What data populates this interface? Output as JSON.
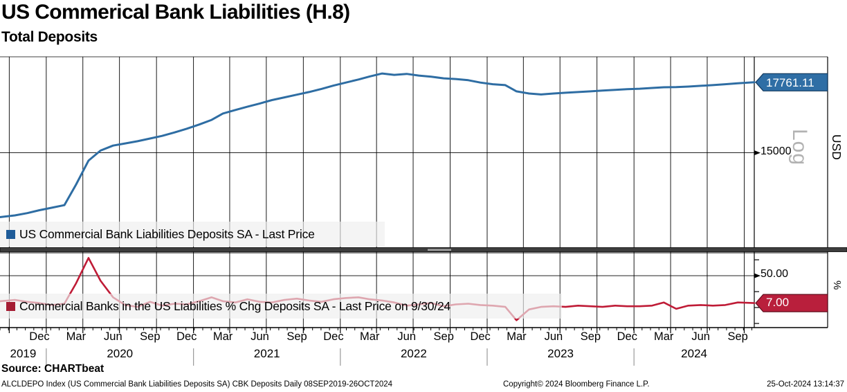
{
  "header": {
    "title": "US Commerical Bank Liabilities (H.8)",
    "subtitle": "Total Deposits"
  },
  "panels": {
    "top": {
      "legend_label": "US Commercial Bank Liabilities Deposits SA - Last Price",
      "axis_tick_label": "15000",
      "last_price_tag": "17761.11",
      "unit_label": "USD",
      "scale_label": "Log"
    },
    "bottom": {
      "legend_label": "Commercial Banks in the US Liabilities % Chg Deposits SA - Last Price on 9/30/24",
      "axis_tick_label": "50.00",
      "last_price_tag": "7.00",
      "unit_label": "%"
    }
  },
  "footer": {
    "source": "Source: CHARTbeat",
    "description": "ALCLDEPO Index (US Commercial Bank Liabilities Deposits SA) CBK Deposits  Daily 08SEP2019-26OCT2024",
    "copyright": "Copyright© 2024 Bloomberg Finance L.P.",
    "datetime": "25-Oct-2024 13:14:37"
  },
  "colors": {
    "blue_line": "#2e6da3",
    "blue_tag_fill": "#2f6ea5",
    "blue_tag_border": "#11375c",
    "blue_swatch": "#1f5c99",
    "red_line": "#bf1b36",
    "red_tag_fill": "#b91f3c",
    "red_tag_border": "#5f0d1d",
    "red_swatch": "#a51c33",
    "gridline": "#000000",
    "divider": "#3d3d3d",
    "year_separator": "#999999",
    "log_watermark": "#b2b2b2"
  },
  "x_axis": {
    "start_date": "2019-09-08",
    "end_date": "2024-10-26",
    "months": [
      {
        "label": "Dec",
        "date": "2019-12-15"
      },
      {
        "label": "Mar",
        "date": "2020-03-15"
      },
      {
        "label": "Jun",
        "date": "2020-06-15"
      },
      {
        "label": "Sep",
        "date": "2020-09-15"
      },
      {
        "label": "Dec",
        "date": "2020-12-15"
      },
      {
        "label": "Mar",
        "date": "2021-03-15"
      },
      {
        "label": "Jun",
        "date": "2021-06-15"
      },
      {
        "label": "Sep",
        "date": "2021-09-15"
      },
      {
        "label": "Dec",
        "date": "2021-12-15"
      },
      {
        "label": "Mar",
        "date": "2022-03-15"
      },
      {
        "label": "Jun",
        "date": "2022-06-15"
      },
      {
        "label": "Sep",
        "date": "2022-09-15"
      },
      {
        "label": "Dec",
        "date": "2022-12-15"
      },
      {
        "label": "Mar",
        "date": "2023-03-15"
      },
      {
        "label": "Jun",
        "date": "2023-06-15"
      },
      {
        "label": "Sep",
        "date": "2023-09-15"
      },
      {
        "label": "Dec",
        "date": "2023-12-15"
      },
      {
        "label": "Mar",
        "date": "2024-03-15"
      },
      {
        "label": "Jun",
        "date": "2024-06-15"
      },
      {
        "label": "Sep",
        "date": "2024-09-15"
      }
    ],
    "years": [
      {
        "label": "2019",
        "start": "2019-09-08",
        "end": "2020-01-01"
      },
      {
        "label": "2020",
        "start": "2020-01-01",
        "end": "2021-01-01"
      },
      {
        "label": "2021",
        "start": "2021-01-01",
        "end": "2022-01-01"
      },
      {
        "label": "2022",
        "start": "2022-01-01",
        "end": "2023-01-01"
      },
      {
        "label": "2023",
        "start": "2023-01-01",
        "end": "2024-01-01"
      },
      {
        "label": "2024",
        "start": "2024-01-01",
        "end": "2024-10-26"
      }
    ]
  },
  "chart_data": [
    {
      "type": "line",
      "name": "US Commercial Bank Liabilities Deposits SA - Last Price",
      "unit": "USD (billions)",
      "yscale": "log",
      "ylim": [
        11960,
        18880
      ],
      "gridline_values": [
        15000
      ],
      "legend_position": "bottom-left-band",
      "grid": "quarterly-vertical",
      "last_price": 17761.11,
      "x": [
        "2019-09-08",
        "2019-10-15",
        "2019-11-15",
        "2019-12-15",
        "2020-01-15",
        "2020-02-15",
        "2020-03-15",
        "2020-04-15",
        "2020-05-15",
        "2020-06-15",
        "2020-07-15",
        "2020-08-15",
        "2020-09-15",
        "2020-10-15",
        "2020-11-15",
        "2020-12-15",
        "2021-01-15",
        "2021-02-15",
        "2021-03-15",
        "2021-04-15",
        "2021-05-15",
        "2021-06-15",
        "2021-07-15",
        "2021-08-15",
        "2021-09-15",
        "2021-10-15",
        "2021-11-15",
        "2021-12-15",
        "2022-01-15",
        "2022-02-15",
        "2022-03-15",
        "2022-04-15",
        "2022-05-15",
        "2022-06-15",
        "2022-07-15",
        "2022-08-15",
        "2022-09-15",
        "2022-10-15",
        "2022-11-15",
        "2022-12-15",
        "2023-01-15",
        "2023-02-15",
        "2023-03-15",
        "2023-04-15",
        "2023-05-15",
        "2023-06-15",
        "2023-07-15",
        "2023-08-15",
        "2023-09-15",
        "2023-10-15",
        "2023-11-15",
        "2023-12-15",
        "2024-01-15",
        "2024-02-15",
        "2024-03-15",
        "2024-04-15",
        "2024-05-15",
        "2024-06-15",
        "2024-07-15",
        "2024-08-15",
        "2024-09-15",
        "2024-10-26"
      ],
      "values": [
        12855,
        12910,
        12980,
        13070,
        13150,
        13230,
        13900,
        14720,
        15080,
        15260,
        15340,
        15420,
        15520,
        15620,
        15750,
        15890,
        16050,
        16230,
        16480,
        16620,
        16750,
        16880,
        17020,
        17130,
        17240,
        17350,
        17480,
        17620,
        17750,
        17880,
        18010,
        18140,
        18080,
        18120,
        18050,
        18000,
        17930,
        17900,
        17850,
        17750,
        17680,
        17640,
        17380,
        17290,
        17250,
        17290,
        17320,
        17350,
        17380,
        17410,
        17440,
        17470,
        17490,
        17520,
        17550,
        17560,
        17580,
        17610,
        17640,
        17680,
        17720,
        17761.11
      ]
    },
    {
      "type": "line",
      "name": "Commercial Banks in the US Liabilities % Chg Deposits SA - Last Price on 9/30/24",
      "unit": "%",
      "yscale": "linear",
      "ylim": [
        -31.5,
        86
      ],
      "gridline_values": [
        50
      ],
      "tick_values": [
        75,
        50,
        25,
        0,
        -25
      ],
      "legend_position": "bottom-left-band",
      "last_price": 7.0,
      "last_price_date": "9/30/24",
      "x": [
        "2019-09-08",
        "2019-10-15",
        "2019-11-15",
        "2019-12-15",
        "2020-01-15",
        "2020-02-15",
        "2020-03-15",
        "2020-04-15",
        "2020-05-15",
        "2020-06-15",
        "2020-07-15",
        "2020-08-15",
        "2020-09-15",
        "2020-10-15",
        "2020-11-15",
        "2020-12-15",
        "2021-01-15",
        "2021-02-15",
        "2021-03-15",
        "2021-04-15",
        "2021-05-15",
        "2021-06-15",
        "2021-07-15",
        "2021-08-15",
        "2021-09-15",
        "2021-10-15",
        "2021-11-15",
        "2021-12-15",
        "2022-01-15",
        "2022-02-15",
        "2022-03-15",
        "2022-04-15",
        "2022-05-15",
        "2022-06-15",
        "2022-07-15",
        "2022-08-15",
        "2022-09-15",
        "2022-10-15",
        "2022-11-15",
        "2022-12-15",
        "2023-01-15",
        "2023-02-15",
        "2023-03-15",
        "2023-04-15",
        "2023-05-15",
        "2023-06-15",
        "2023-07-15",
        "2023-08-15",
        "2023-09-15",
        "2023-10-15",
        "2023-11-15",
        "2023-12-15",
        "2024-01-15",
        "2024-02-15",
        "2024-03-15",
        "2024-04-15",
        "2024-05-15",
        "2024-06-15",
        "2024-07-15",
        "2024-08-15",
        "2024-09-15",
        "2024-10-26"
      ],
      "values": [
        10,
        12,
        9,
        7,
        4,
        6,
        38,
        78,
        42,
        16,
        4,
        1,
        9,
        3,
        6,
        5,
        10,
        16,
        10,
        8,
        13,
        9,
        8,
        12,
        14,
        11,
        9,
        13,
        15,
        16,
        13,
        11,
        8,
        3,
        5,
        7,
        2,
        5,
        6,
        4,
        3,
        1,
        -20,
        -3,
        1,
        2,
        1,
        3,
        2,
        1,
        3,
        2,
        2,
        3,
        8,
        -2,
        3,
        4,
        3,
        4,
        8,
        7
      ]
    }
  ]
}
